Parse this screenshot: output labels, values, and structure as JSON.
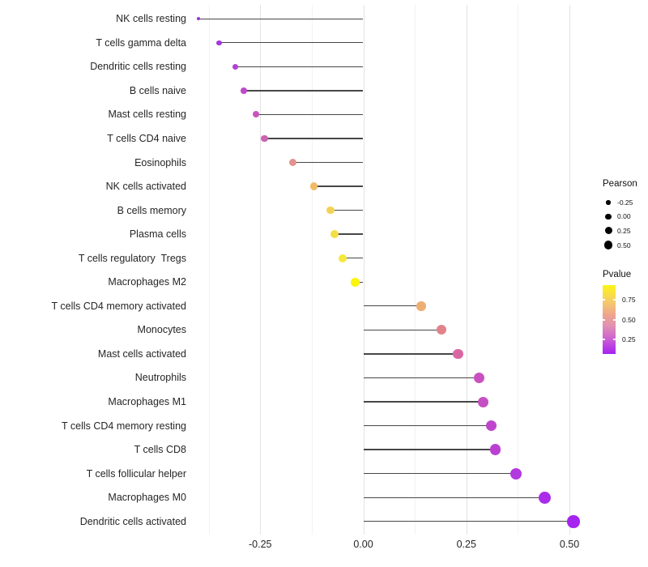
{
  "chart_data": {
    "type": "lollipop",
    "title": "",
    "xlabel": "",
    "ylabel": "",
    "x_ticks": [
      -0.25,
      0,
      0.25,
      0.5
    ],
    "x_tick_labels": [
      "-0.25",
      "0.00",
      "0.25",
      "0.50"
    ],
    "x_minor_ticks": [
      -0.375,
      -0.125,
      0.125,
      0.375
    ],
    "xlim": [
      -0.42,
      0.55
    ],
    "grid": "vertical-only",
    "stem_color": "#474747",
    "rows": [
      {
        "label": "NK cells resting",
        "pearson": -0.4,
        "color": "#9733D6",
        "size": 4
      },
      {
        "label": "T cells gamma delta",
        "pearson": -0.35,
        "color": "#A438DB",
        "size": 6.5
      },
      {
        "label": "Dendritic cells resting",
        "pearson": -0.31,
        "color": "#B342D2",
        "size": 7.5
      },
      {
        "label": "B cells naive",
        "pearson": -0.29,
        "color": "#BD4BC9",
        "size": 7.5
      },
      {
        "label": "Mast cells resting",
        "pearson": -0.26,
        "color": "#C656BD",
        "size": 8
      },
      {
        "label": "T cells CD4 naive",
        "pearson": -0.24,
        "color": "#CC62B2",
        "size": 8.5
      },
      {
        "label": "Eosinophils",
        "pearson": -0.17,
        "color": "#E2928F",
        "size": 9
      },
      {
        "label": "NK cells activated",
        "pearson": -0.12,
        "color": "#EFBC66",
        "size": 9.5
      },
      {
        "label": "B cells memory",
        "pearson": -0.08,
        "color": "#F2D155",
        "size": 9.5
      },
      {
        "label": "Plasma cells",
        "pearson": -0.07,
        "color": "#F4DE47",
        "size": 10
      },
      {
        "label": "T cells regulatory  Tregs",
        "pearson": -0.05,
        "color": "#F6E83B",
        "size": 10
      },
      {
        "label": "Macrophages M2",
        "pearson": -0.02,
        "color": "#FAF50F",
        "size": 10.5
      },
      {
        "label": "T cells CD4 memory activated",
        "pearson": 0.14,
        "color": "#EEAD72",
        "size": 11.5
      },
      {
        "label": "Monocytes",
        "pearson": 0.19,
        "color": "#E28289",
        "size": 12
      },
      {
        "label": "Mast cells activated",
        "pearson": 0.23,
        "color": "#D966A3",
        "size": 12.5
      },
      {
        "label": "Neutrophils",
        "pearson": 0.28,
        "color": "#C951BF",
        "size": 13
      },
      {
        "label": "Macrophages M1",
        "pearson": 0.29,
        "color": "#C64FC3",
        "size": 13
      },
      {
        "label": "T cells CD4 memory resting",
        "pearson": 0.31,
        "color": "#BF46CC",
        "size": 13.5
      },
      {
        "label": "T cells CD8",
        "pearson": 0.32,
        "color": "#BA40D3",
        "size": 13.5
      },
      {
        "label": "T cells follicular helper",
        "pearson": 0.37,
        "color": "#B238DF",
        "size": 14
      },
      {
        "label": "Macrophages M0",
        "pearson": 0.44,
        "color": "#AA2CEA",
        "size": 15
      },
      {
        "label": "Dendritic cells activated",
        "pearson": 0.51,
        "color": "#A524F0",
        "size": 15.5
      }
    ],
    "legends": {
      "size": {
        "title": "Pearson",
        "dot_color": "#000000",
        "items": [
          {
            "label": "-0.25",
            "d": 5.5
          },
          {
            "label": "0.00",
            "d": 7.5
          },
          {
            "label": "0.25",
            "d": 9
          },
          {
            "label": "0.50",
            "d": 10.5
          }
        ]
      },
      "color": {
        "title": "Pvalue",
        "labels": [
          {
            "text": "0.75",
            "offset": 18
          },
          {
            "text": "0.50",
            "offset": 43
          },
          {
            "text": "0.25",
            "offset": 67
          }
        ],
        "gradient": [
          {
            "color": "#FBF614",
            "pos": 0
          },
          {
            "color": "#F6CB6B",
            "pos": 24
          },
          {
            "color": "#EDA48E",
            "pos": 44
          },
          {
            "color": "#E090B4",
            "pos": 60
          },
          {
            "color": "#CB5ED3",
            "pos": 79
          },
          {
            "color": "#A620F2",
            "pos": 100
          }
        ]
      }
    }
  }
}
